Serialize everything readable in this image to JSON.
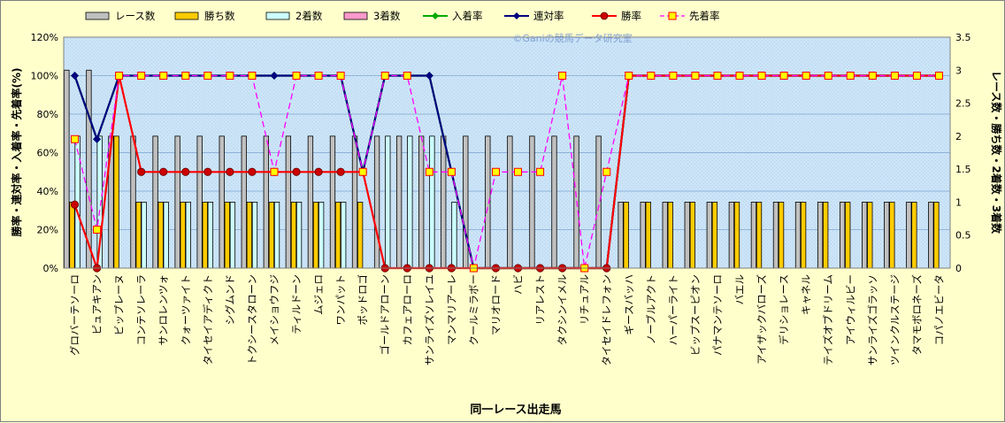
{
  "chart_data": {
    "type": "bar",
    "watermark": "©Ganiの競馬データ研究室",
    "xlabel": "同一レース出走馬",
    "ylabel_left": "勝率・連対率・入着率・先着率(%)",
    "ylabel_right": "レース数・勝ち数・2着数・3着数",
    "ylim_left": [
      0,
      120
    ],
    "yticks_left": [
      "0%",
      "20%",
      "40%",
      "60%",
      "80%",
      "100%",
      "120%"
    ],
    "ylim_right": [
      0,
      3.5
    ],
    "yticks_right": [
      "0",
      "0.5",
      "1",
      "1.5",
      "2",
      "2.5",
      "3",
      "3.5"
    ],
    "grid": true,
    "legend_position": "top",
    "categories": [
      "グロバーテソーロ",
      "ピュアキアン",
      "ビップレーヌ",
      "コンテソレーラ",
      "サンロレンツォ",
      "クォーツァイト",
      "タイセイアディクト",
      "シグムンド",
      "トクシースタローン",
      "メイショウフジ",
      "ティルドーン",
      "ムジェロ",
      "ワンパット",
      "ポッドロゴ",
      "ゴールドアローン",
      "カフェアローロ",
      "サンライズソレイユ",
      "マンマリアーレ",
      "クールミラボー",
      "マリオロード",
      "ハビ",
      "リアレスト",
      "タクシンイメル",
      "リチュアル",
      "タイセイドレフォン",
      "ギースバッハ",
      "ノーブルアクト",
      "ハーパーライト",
      "ビップスーピオン",
      "パナマンテソーロ",
      "バエル",
      "アイザックバローズ",
      "デリショレース",
      "キャネル",
      "テイズオブドリーム",
      "アイウィルビー",
      "サンライズゴラッソ",
      "ツインクルステージ",
      "タマモボロネーズ",
      "コパノエビータ"
    ],
    "series": [
      {
        "name": "レース数",
        "axis": "right",
        "kind": "bar",
        "color": "#c0c0c0",
        "values": [
          3,
          3,
          2,
          2,
          2,
          2,
          2,
          2,
          2,
          2,
          2,
          2,
          2,
          2,
          2,
          2,
          2,
          2,
          2,
          2,
          2,
          2,
          2,
          2,
          2,
          1,
          1,
          1,
          1,
          1,
          1,
          1,
          1,
          1,
          1,
          1,
          1,
          1,
          1,
          1
        ]
      },
      {
        "name": "勝ち数",
        "axis": "right",
        "kind": "bar",
        "color": "#ffcc00",
        "values": [
          1,
          0,
          2,
          1,
          1,
          1,
          1,
          1,
          1,
          1,
          1,
          1,
          1,
          1,
          0,
          0,
          0,
          0,
          0,
          0,
          0,
          0,
          0,
          0,
          0,
          1,
          1,
          1,
          1,
          1,
          1,
          1,
          1,
          1,
          1,
          1,
          1,
          1,
          1,
          1
        ]
      },
      {
        "name": "2着数",
        "axis": "right",
        "kind": "bar",
        "color": "#ccffff",
        "values": [
          2,
          2,
          0,
          1,
          1,
          1,
          1,
          1,
          1,
          1,
          1,
          1,
          1,
          0,
          2,
          2,
          2,
          1,
          0,
          0,
          0,
          0,
          0,
          0,
          0,
          0,
          0,
          0,
          0,
          0,
          0,
          0,
          0,
          0,
          0,
          0,
          0,
          0,
          0,
          0
        ]
      },
      {
        "name": "3着数",
        "axis": "right",
        "kind": "bar",
        "color": "#ff99cc",
        "values": [
          0,
          0,
          0,
          0,
          0,
          0,
          0,
          0,
          0,
          0,
          0,
          0,
          0,
          0,
          0,
          0,
          0,
          0,
          0,
          0,
          0,
          0,
          0,
          0,
          0,
          0,
          0,
          0,
          0,
          0,
          0,
          0,
          0,
          0,
          0,
          0,
          0,
          0,
          0,
          0
        ]
      },
      {
        "name": "入着率",
        "axis": "left",
        "kind": "line",
        "color": "#00aa00",
        "marker": "diamond",
        "values": [
          100,
          67,
          100,
          100,
          100,
          100,
          100,
          100,
          100,
          100,
          100,
          100,
          100,
          50,
          100,
          100,
          100,
          50,
          0,
          0,
          0,
          0,
          0,
          0,
          0,
          100,
          100,
          100,
          100,
          100,
          100,
          100,
          100,
          100,
          100,
          100,
          100,
          100,
          100,
          100
        ]
      },
      {
        "name": "連対率",
        "axis": "left",
        "kind": "line",
        "color": "#000080",
        "marker": "diamond",
        "values": [
          100,
          67,
          100,
          100,
          100,
          100,
          100,
          100,
          100,
          100,
          100,
          100,
          100,
          50,
          100,
          100,
          100,
          50,
          0,
          0,
          0,
          0,
          0,
          0,
          0,
          100,
          100,
          100,
          100,
          100,
          100,
          100,
          100,
          100,
          100,
          100,
          100,
          100,
          100,
          100
        ]
      },
      {
        "name": "勝率",
        "axis": "left",
        "kind": "line",
        "color": "#ff0000",
        "marker": "circle",
        "values": [
          33,
          0,
          100,
          50,
          50,
          50,
          50,
          50,
          50,
          50,
          50,
          50,
          50,
          50,
          0,
          0,
          0,
          0,
          0,
          0,
          0,
          0,
          0,
          0,
          0,
          100,
          100,
          100,
          100,
          100,
          100,
          100,
          100,
          100,
          100,
          100,
          100,
          100,
          100,
          100
        ]
      },
      {
        "name": "先着率",
        "axis": "left",
        "kind": "dashed-line",
        "color": "#ff00ff",
        "marker": "square",
        "marker_fill": "#ffff00",
        "marker_stroke": "#ff0000",
        "values": [
          67,
          20,
          100,
          100,
          100,
          100,
          100,
          100,
          100,
          50,
          100,
          100,
          100,
          50,
          100,
          100,
          50,
          50,
          0,
          50,
          50,
          50,
          100,
          0,
          50,
          100,
          100,
          100,
          100,
          100,
          100,
          100,
          100,
          100,
          100,
          100,
          100,
          100,
          100,
          100
        ]
      }
    ]
  }
}
